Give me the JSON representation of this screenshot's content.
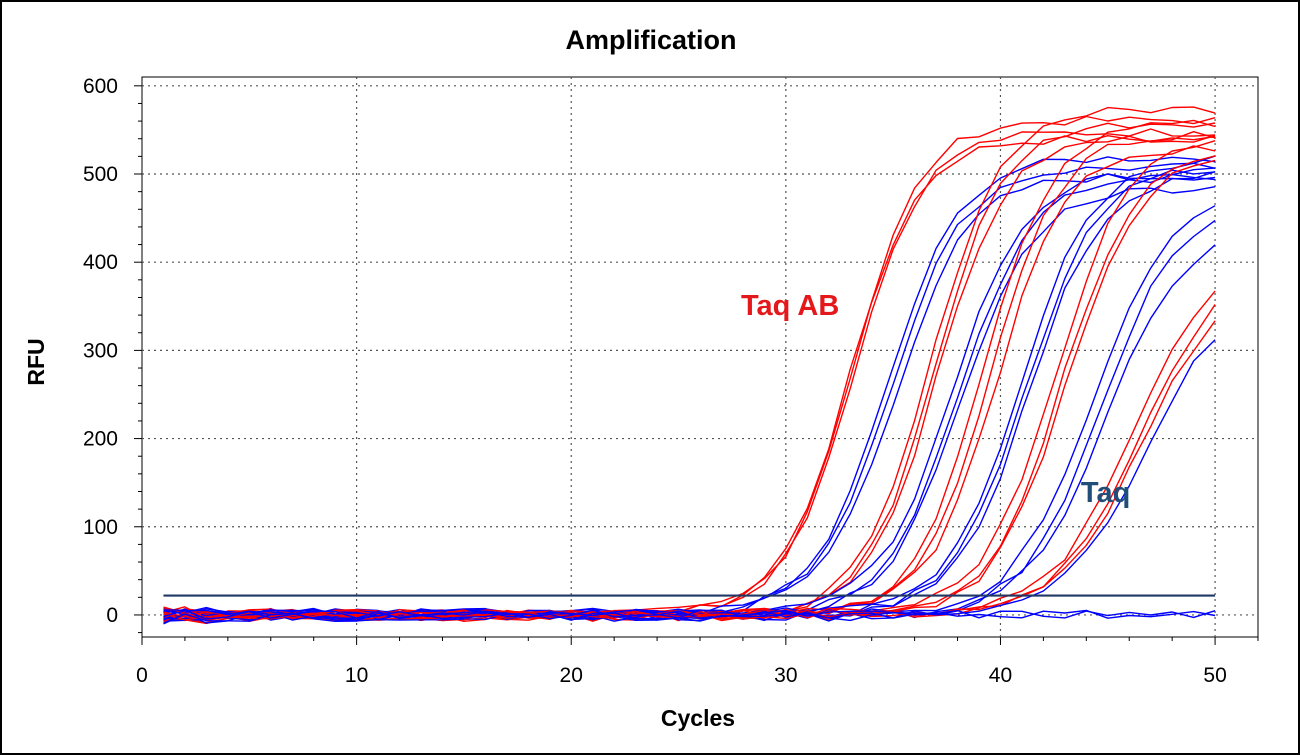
{
  "chart_data": {
    "type": "line",
    "title": "Amplification",
    "xlabel": "Cycles",
    "ylabel": "RFU",
    "xlim": [
      0,
      52
    ],
    "ylim": [
      -25,
      610
    ],
    "xticks": [
      0,
      10,
      20,
      30,
      40,
      50
    ],
    "yticks": [
      0,
      100,
      200,
      300,
      400,
      500,
      600
    ],
    "grid": true,
    "threshold": 22,
    "threshold_color": "#1f3864",
    "cycles": [
      1,
      50
    ],
    "annotations": [
      {
        "text": "Taq AB",
        "x": 30.2,
        "y": 340,
        "color": "#e4181b"
      },
      {
        "text": "Taq",
        "x": 44.9,
        "y": 128,
        "color": "#1f4e79"
      }
    ],
    "series": [
      {
        "color": "#ff0000",
        "ct": 27.9,
        "plateau": 540,
        "slope": 1.6
      },
      {
        "color": "#ff0000",
        "ct": 28.0,
        "plateau": 560,
        "slope": 1.6
      },
      {
        "color": "#ff0000",
        "ct": 28.1,
        "plateau": 545,
        "slope": 1.6
      },
      {
        "color": "#0000ff",
        "ct": 29.4,
        "plateau": 520,
        "slope": 1.7
      },
      {
        "color": "#0000ff",
        "ct": 29.6,
        "plateau": 505,
        "slope": 1.7
      },
      {
        "color": "#0000ff",
        "ct": 29.9,
        "plateau": 495,
        "slope": 1.7
      },
      {
        "color": "#ff0000",
        "ct": 31.6,
        "plateau": 575,
        "slope": 1.6
      },
      {
        "color": "#ff0000",
        "ct": 31.8,
        "plateau": 560,
        "slope": 1.6
      },
      {
        "color": "#ff0000",
        "ct": 32.0,
        "plateau": 540,
        "slope": 1.6
      },
      {
        "color": "#0000ff",
        "ct": 32.5,
        "plateau": 500,
        "slope": 1.7
      },
      {
        "color": "#0000ff",
        "ct": 32.8,
        "plateau": 495,
        "slope": 1.7
      },
      {
        "color": "#0000ff",
        "ct": 33.0,
        "plateau": 485,
        "slope": 1.7
      },
      {
        "color": "#ff0000",
        "ct": 34.1,
        "plateau": 560,
        "slope": 1.6
      },
      {
        "color": "#ff0000",
        "ct": 34.5,
        "plateau": 545,
        "slope": 1.6
      },
      {
        "color": "#ff0000",
        "ct": 34.8,
        "plateau": 530,
        "slope": 1.6
      },
      {
        "color": "#0000ff",
        "ct": 35.6,
        "plateau": 520,
        "slope": 1.7
      },
      {
        "color": "#0000ff",
        "ct": 35.9,
        "plateau": 510,
        "slope": 1.7
      },
      {
        "color": "#0000ff",
        "ct": 36.1,
        "plateau": 500,
        "slope": 1.7
      },
      {
        "color": "#ff0000",
        "ct": 37.2,
        "plateau": 545,
        "slope": 1.7
      },
      {
        "color": "#ff0000",
        "ct": 37.5,
        "plateau": 530,
        "slope": 1.7
      },
      {
        "color": "#ff0000",
        "ct": 37.7,
        "plateau": 525,
        "slope": 1.7
      },
      {
        "color": "#0000ff",
        "ct": 38.8,
        "plateau": 480,
        "slope": 1.8
      },
      {
        "color": "#0000ff",
        "ct": 39.2,
        "plateau": 470,
        "slope": 1.8
      },
      {
        "color": "#0000ff",
        "ct": 39.5,
        "plateau": 440,
        "slope": 1.8
      },
      {
        "color": "#ff0000",
        "ct": 40.7,
        "plateau": 420,
        "slope": 1.9
      },
      {
        "color": "#ff0000",
        "ct": 41.0,
        "plateau": 400,
        "slope": 1.9
      },
      {
        "color": "#ff0000",
        "ct": 41.2,
        "plateau": 380,
        "slope": 1.9
      },
      {
        "color": "#0000ff",
        "ct": 41.4,
        "plateau": 370,
        "slope": 1.9
      },
      {
        "color": "#0000ff",
        "ct": null,
        "plateau": 0,
        "slope": 1
      },
      {
        "color": "#0000ff",
        "ct": null,
        "plateau": 0,
        "slope": 1
      }
    ]
  }
}
